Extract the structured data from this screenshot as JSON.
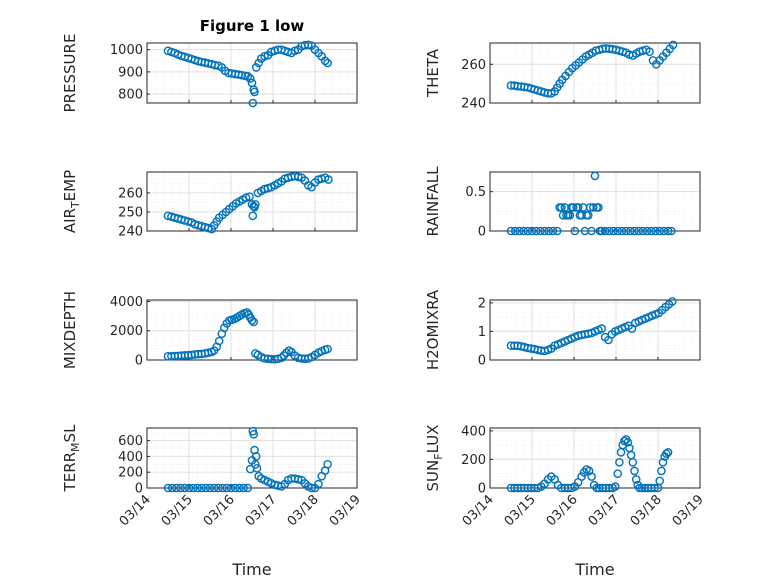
{
  "figure": {
    "title": "Figure 1 low",
    "xlabel": "Time",
    "marker_color": "#0072BD"
  },
  "x_dates": [
    "03/14",
    "03/15",
    "03/16",
    "03/17",
    "03/18",
    "03/19"
  ],
  "chart_data": [
    {
      "type": "scatter",
      "ylabel": "PRESSURE",
      "ylim": [
        760,
        1030
      ],
      "yticks": [
        800,
        900,
        1000
      ],
      "grid": true,
      "x": [
        14.5,
        14.58,
        14.66,
        14.74,
        14.82,
        14.9,
        14.98,
        15.06,
        15.14,
        15.22,
        15.3,
        15.38,
        15.46,
        15.54,
        15.62,
        15.7,
        15.78,
        15.86,
        15.94,
        16.02,
        16.1,
        16.18,
        16.26,
        16.34,
        16.4,
        16.46,
        16.5,
        16.52,
        16.54,
        16.56,
        16.6,
        16.66,
        16.72,
        16.8,
        16.88,
        16.96,
        17.04,
        17.12,
        17.2,
        17.28,
        17.36,
        17.44,
        17.52,
        17.6,
        17.68,
        17.76,
        17.84,
        17.92,
        18.0,
        18.08,
        18.16,
        18.24,
        18.3
      ],
      "values": [
        995,
        990,
        985,
        978,
        972,
        968,
        963,
        958,
        953,
        948,
        945,
        942,
        938,
        935,
        930,
        928,
        920,
        905,
        895,
        893,
        890,
        888,
        885,
        882,
        880,
        870,
        850,
        760,
        820,
        810,
        920,
        940,
        960,
        970,
        975,
        990,
        995,
        1000,
        1000,
        995,
        990,
        985,
        995,
        1000,
        1015,
        1020,
        1022,
        1018,
        1000,
        985,
        970,
        950,
        940
      ]
    },
    {
      "type": "scatter",
      "ylabel": "THETA",
      "ylim": [
        240,
        271
      ],
      "yticks": [
        240,
        260
      ],
      "grid": true,
      "x": [
        14.5,
        14.58,
        14.66,
        14.74,
        14.82,
        14.9,
        14.98,
        15.06,
        15.14,
        15.22,
        15.3,
        15.38,
        15.46,
        15.54,
        15.6,
        15.66,
        15.72,
        15.8,
        15.88,
        15.96,
        16.04,
        16.12,
        16.2,
        16.28,
        16.36,
        16.44,
        16.52,
        16.6,
        16.68,
        16.76,
        16.84,
        16.92,
        17.0,
        17.08,
        17.16,
        17.24,
        17.32,
        17.4,
        17.48,
        17.56,
        17.64,
        17.72,
        17.8,
        17.88,
        17.96,
        18.04,
        18.12,
        18.2,
        18.28,
        18.36
      ],
      "values": [
        249,
        249,
        248.7,
        248.5,
        248.3,
        248,
        247.5,
        247,
        246.5,
        246,
        245.5,
        245,
        245,
        246,
        248,
        250,
        252,
        254,
        256,
        258,
        259.5,
        261,
        262.5,
        264,
        265,
        266,
        267,
        267.5,
        268,
        268.2,
        268,
        267.8,
        267.5,
        267,
        266.5,
        266,
        265,
        264.5,
        265.5,
        266.5,
        267,
        267.5,
        266.5,
        262,
        260,
        262,
        264,
        266,
        268,
        270
      ]
    },
    {
      "type": "scatter",
      "ylabel": "AIR_TEMP",
      "ylim": [
        240,
        271
      ],
      "yticks": [
        240,
        250,
        260
      ],
      "grid": true,
      "x": [
        14.5,
        14.58,
        14.66,
        14.74,
        14.82,
        14.9,
        14.98,
        15.06,
        15.14,
        15.22,
        15.3,
        15.38,
        15.46,
        15.54,
        15.6,
        15.66,
        15.72,
        15.8,
        15.88,
        15.96,
        16.04,
        16.12,
        16.2,
        16.28,
        16.36,
        16.44,
        16.5,
        16.52,
        16.54,
        16.56,
        16.58,
        16.64,
        16.72,
        16.8,
        16.88,
        16.96,
        17.04,
        17.12,
        17.2,
        17.28,
        17.36,
        17.44,
        17.52,
        17.6,
        17.68,
        17.76,
        17.84,
        17.92,
        18.0,
        18.08,
        18.16,
        18.24,
        18.32
      ],
      "values": [
        248,
        247.5,
        247,
        246.5,
        246,
        245.5,
        245,
        244.5,
        243.5,
        243,
        242.5,
        242,
        241.5,
        241,
        243,
        245,
        247,
        248.5,
        250,
        251.5,
        253,
        254.5,
        255.5,
        256.5,
        257.5,
        258,
        254,
        248,
        253,
        252.5,
        254,
        260,
        261,
        262,
        262.5,
        263,
        264,
        265,
        266,
        267.5,
        268,
        268.5,
        268.8,
        268.5,
        268,
        266.5,
        264,
        263,
        265.5,
        267,
        267.5,
        268,
        267
      ]
    },
    {
      "type": "scatter",
      "ylabel": "RAINFALL",
      "ylim": [
        0,
        0.75
      ],
      "yticks": [
        0,
        0.5
      ],
      "grid": true,
      "x": [
        14.5,
        14.6,
        14.7,
        14.8,
        14.9,
        15.0,
        15.1,
        15.2,
        15.3,
        15.4,
        15.5,
        15.6,
        15.66,
        15.7,
        15.74,
        15.78,
        15.82,
        15.86,
        15.9,
        15.94,
        15.98,
        16.02,
        16.06,
        16.1,
        16.14,
        16.18,
        16.22,
        16.26,
        16.3,
        16.34,
        16.38,
        16.42,
        16.46,
        16.5,
        16.54,
        16.58,
        16.62,
        16.66,
        16.74,
        16.84,
        16.94,
        17.04,
        17.14,
        17.24,
        17.34,
        17.44,
        17.54,
        17.64,
        17.74,
        17.84,
        17.94,
        18.04,
        18.14,
        18.24,
        18.32
      ],
      "values": [
        0,
        0,
        0,
        0,
        0,
        0,
        0,
        0,
        0,
        0,
        0,
        0,
        0.3,
        0.3,
        0.2,
        0.3,
        0.2,
        0.2,
        0.2,
        0.3,
        0.3,
        0,
        0.3,
        0.3,
        0.2,
        0.2,
        0.3,
        0,
        0.2,
        0.2,
        0.3,
        0,
        0.3,
        0.7,
        0.3,
        0.3,
        0,
        0,
        0,
        0,
        0,
        0,
        0,
        0,
        0,
        0,
        0,
        0,
        0,
        0,
        0,
        0,
        0,
        0,
        0
      ]
    },
    {
      "type": "scatter",
      "ylabel": "MIXDEPTH",
      "ylim": [
        0,
        4100
      ],
      "yticks": [
        0,
        2000,
        4000
      ],
      "grid": true,
      "x": [
        14.5,
        14.58,
        14.66,
        14.74,
        14.82,
        14.9,
        14.98,
        15.06,
        15.14,
        15.22,
        15.3,
        15.38,
        15.46,
        15.54,
        15.6,
        15.66,
        15.72,
        15.78,
        15.84,
        15.9,
        15.96,
        16.02,
        16.08,
        16.14,
        16.2,
        16.26,
        16.32,
        16.38,
        16.42,
        16.46,
        16.5,
        16.54,
        16.58,
        16.64,
        16.72,
        16.8,
        16.88,
        16.96,
        17.04,
        17.12,
        17.2,
        17.26,
        17.32,
        17.38,
        17.44,
        17.52,
        17.6,
        17.68,
        17.76,
        17.84,
        17.92,
        18.0,
        18.08,
        18.16,
        18.24,
        18.3
      ],
      "values": [
        250,
        260,
        270,
        280,
        300,
        320,
        330,
        350,
        380,
        400,
        420,
        450,
        500,
        550,
        650,
        900,
        1300,
        1800,
        2200,
        2500,
        2700,
        2750,
        2800,
        2900,
        3000,
        3100,
        3200,
        3250,
        3100,
        2900,
        2700,
        2600,
        450,
        350,
        200,
        100,
        80,
        60,
        50,
        80,
        150,
        300,
        500,
        650,
        550,
        300,
        150,
        100,
        80,
        100,
        200,
        350,
        500,
        600,
        700,
        750
      ]
    },
    {
      "type": "scatter",
      "ylabel": "H2OMIXRA",
      "ylim": [
        0,
        2.1
      ],
      "yticks": [
        0,
        1,
        2
      ],
      "grid": true,
      "x": [
        14.5,
        14.58,
        14.66,
        14.74,
        14.82,
        14.9,
        14.98,
        15.06,
        15.14,
        15.22,
        15.3,
        15.38,
        15.46,
        15.54,
        15.62,
        15.7,
        15.78,
        15.86,
        15.94,
        16.02,
        16.1,
        16.18,
        16.26,
        16.34,
        16.42,
        16.5,
        16.58,
        16.66,
        16.74,
        16.82,
        16.9,
        16.98,
        17.06,
        17.14,
        17.22,
        17.3,
        17.38,
        17.46,
        17.54,
        17.62,
        17.7,
        17.78,
        17.86,
        17.94,
        18.02,
        18.1,
        18.18,
        18.26,
        18.34
      ],
      "values": [
        0.5,
        0.5,
        0.5,
        0.48,
        0.45,
        0.42,
        0.4,
        0.38,
        0.35,
        0.33,
        0.32,
        0.35,
        0.4,
        0.5,
        0.55,
        0.6,
        0.65,
        0.7,
        0.75,
        0.8,
        0.85,
        0.88,
        0.9,
        0.92,
        0.95,
        1.0,
        1.05,
        1.1,
        0.8,
        0.7,
        0.9,
        1.0,
        1.05,
        1.1,
        1.15,
        1.2,
        1.1,
        1.3,
        1.35,
        1.4,
        1.45,
        1.5,
        1.55,
        1.6,
        1.65,
        1.75,
        1.85,
        1.95,
        2.05
      ]
    },
    {
      "type": "scatter",
      "ylabel": "TERR_MSL",
      "ylim": [
        0,
        760
      ],
      "yticks": [
        0,
        200,
        400,
        600
      ],
      "grid": true,
      "x": [
        14.5,
        14.6,
        14.7,
        14.8,
        14.9,
        15.0,
        15.1,
        15.2,
        15.3,
        15.4,
        15.5,
        15.6,
        15.7,
        15.8,
        15.9,
        16.0,
        16.1,
        16.2,
        16.3,
        16.4,
        16.46,
        16.5,
        16.52,
        16.54,
        16.56,
        16.58,
        16.6,
        16.62,
        16.66,
        16.72,
        16.8,
        16.88,
        16.96,
        17.04,
        17.12,
        17.2,
        17.28,
        17.36,
        17.44,
        17.52,
        17.6,
        17.68,
        17.76,
        17.84,
        17.92,
        18.0,
        18.08,
        18.16,
        18.24,
        18.3
      ],
      "values": [
        0,
        0,
        0,
        0,
        0,
        0,
        0,
        0,
        0,
        0,
        0,
        0,
        0,
        0,
        0,
        0,
        0,
        0,
        0,
        0,
        240,
        350,
        720,
        680,
        480,
        300,
        400,
        250,
        150,
        120,
        100,
        80,
        60,
        40,
        30,
        20,
        50,
        100,
        120,
        120,
        110,
        100,
        60,
        20,
        0,
        0,
        50,
        150,
        220,
        300
      ]
    },
    {
      "type": "scatter",
      "ylabel": "SUN_FLUX",
      "ylim": [
        0,
        420
      ],
      "yticks": [
        0,
        200,
        400
      ],
      "grid": true,
      "x": [
        14.5,
        14.58,
        14.66,
        14.74,
        14.82,
        14.9,
        14.98,
        15.06,
        15.14,
        15.22,
        15.3,
        15.38,
        15.46,
        15.54,
        15.62,
        15.7,
        15.78,
        15.86,
        15.94,
        16.02,
        16.1,
        16.18,
        16.24,
        16.3,
        16.36,
        16.42,
        16.48,
        16.54,
        16.6,
        16.68,
        16.76,
        16.84,
        16.92,
        16.98,
        17.04,
        17.08,
        17.12,
        17.16,
        17.2,
        17.24,
        17.28,
        17.32,
        17.36,
        17.4,
        17.44,
        17.48,
        17.52,
        17.56,
        17.62,
        17.68,
        17.76,
        17.84,
        17.92,
        18.0,
        18.04,
        18.08,
        18.12,
        18.16,
        18.2,
        18.24
      ],
      "values": [
        0,
        0,
        0,
        0,
        0,
        0,
        0,
        0,
        0,
        10,
        30,
        60,
        80,
        60,
        20,
        0,
        0,
        0,
        0,
        10,
        40,
        80,
        110,
        130,
        120,
        80,
        20,
        0,
        0,
        0,
        0,
        0,
        0,
        10,
        100,
        180,
        250,
        300,
        330,
        340,
        320,
        280,
        230,
        180,
        120,
        60,
        20,
        0,
        0,
        0,
        0,
        0,
        0,
        0,
        50,
        120,
        180,
        220,
        240,
        250
      ]
    }
  ]
}
